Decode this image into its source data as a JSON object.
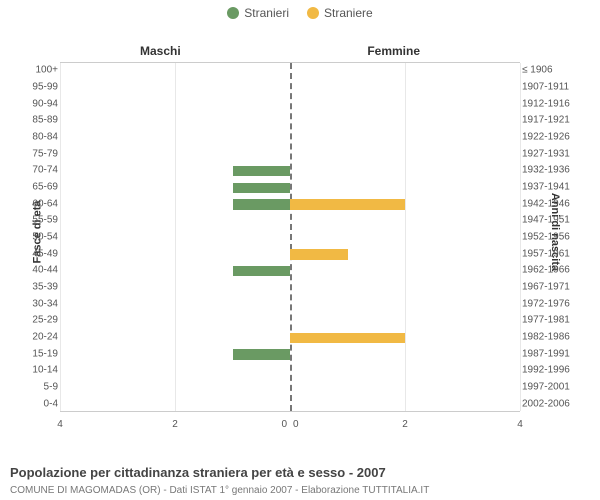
{
  "legend": [
    {
      "label": "Stranieri",
      "color": "#6a9a63"
    },
    {
      "label": "Straniere",
      "color": "#f1b944"
    }
  ],
  "columns": {
    "left_title": "Maschi",
    "right_title": "Femmine"
  },
  "axes": {
    "left_label": "Fasce di età",
    "right_label": "Anni di nascita",
    "x_max": 4,
    "x_ticks_left": [
      4,
      2,
      0
    ],
    "x_ticks_right": [
      0,
      2,
      4
    ]
  },
  "colors": {
    "male_bar": "#6a9a63",
    "female_bar": "#f1b944",
    "grid": "#e8e8e8",
    "center_line": "#777777",
    "background": "#ffffff"
  },
  "rows": [
    {
      "age": "100+",
      "year": "≤ 1906",
      "m": 0,
      "f": 0
    },
    {
      "age": "95-99",
      "year": "1907-1911",
      "m": 0,
      "f": 0
    },
    {
      "age": "90-94",
      "year": "1912-1916",
      "m": 0,
      "f": 0
    },
    {
      "age": "85-89",
      "year": "1917-1921",
      "m": 0,
      "f": 0
    },
    {
      "age": "80-84",
      "year": "1922-1926",
      "m": 0,
      "f": 0
    },
    {
      "age": "75-79",
      "year": "1927-1931",
      "m": 0,
      "f": 0
    },
    {
      "age": "70-74",
      "year": "1932-1936",
      "m": 1,
      "f": 0
    },
    {
      "age": "65-69",
      "year": "1937-1941",
      "m": 1,
      "f": 0
    },
    {
      "age": "60-64",
      "year": "1942-1946",
      "m": 1,
      "f": 2
    },
    {
      "age": "55-59",
      "year": "1947-1951",
      "m": 0,
      "f": 0
    },
    {
      "age": "50-54",
      "year": "1952-1956",
      "m": 0,
      "f": 0
    },
    {
      "age": "45-49",
      "year": "1957-1961",
      "m": 0,
      "f": 1
    },
    {
      "age": "40-44",
      "year": "1962-1966",
      "m": 1,
      "f": 0
    },
    {
      "age": "35-39",
      "year": "1967-1971",
      "m": 0,
      "f": 0
    },
    {
      "age": "30-34",
      "year": "1972-1976",
      "m": 0,
      "f": 0
    },
    {
      "age": "25-29",
      "year": "1977-1981",
      "m": 0,
      "f": 0
    },
    {
      "age": "20-24",
      "year": "1982-1986",
      "m": 0,
      "f": 2
    },
    {
      "age": "15-19",
      "year": "1987-1991",
      "m": 1,
      "f": 0
    },
    {
      "age": "10-14",
      "year": "1992-1996",
      "m": 0,
      "f": 0
    },
    {
      "age": "5-9",
      "year": "1997-2001",
      "m": 0,
      "f": 0
    },
    {
      "age": "0-4",
      "year": "2002-2006",
      "m": 0,
      "f": 0
    }
  ],
  "caption": "Popolazione per cittadinanza straniera per età e sesso - 2007",
  "subcaption": "COMUNE DI MAGOMADAS (OR) - Dati ISTAT 1° gennaio 2007 - Elaborazione TUTTITALIA.IT"
}
